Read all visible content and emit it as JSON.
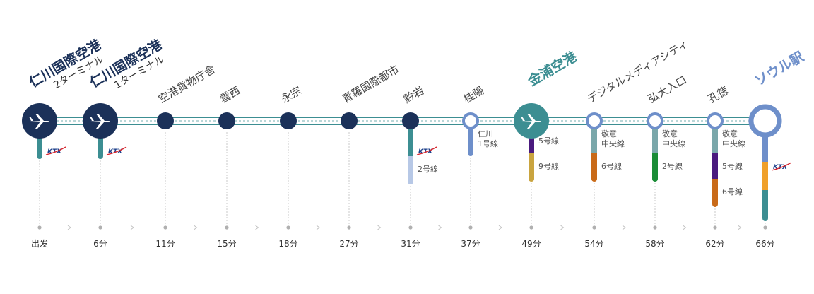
{
  "colors": {
    "dark": "#1b3159",
    "teal": "#3c8e92",
    "blue": "#6e8fca",
    "ktx_blue": "#1b3f8a",
    "ktx_red": "#d7262e"
  },
  "stations": [
    {
      "name": "仁川国際空港",
      "sub": "2ターミナル",
      "time": "出发",
      "type": "airport",
      "style": "dark",
      "connections": [
        {
          "kind": "ktx",
          "label": "KTX",
          "color": "#3c8e92"
        }
      ]
    },
    {
      "name": "仁川国際空港",
      "sub": "1ターミナル",
      "time": "6分",
      "type": "airport",
      "style": "dark",
      "connections": [
        {
          "kind": "ktx",
          "label": "KTX",
          "color": "#3c8e92"
        }
      ]
    },
    {
      "name": "空港貨物庁舎",
      "time": "11分",
      "type": "dark",
      "connections": []
    },
    {
      "name": "雲西",
      "time": "15分",
      "type": "dark",
      "connections": []
    },
    {
      "name": "永宗",
      "time": "18分",
      "type": "dark",
      "connections": []
    },
    {
      "name": "青羅国際都市",
      "time": "27分",
      "type": "dark",
      "connections": []
    },
    {
      "name": "黔岩",
      "time": "31分",
      "type": "dark",
      "connections": [
        {
          "kind": "ktx",
          "label": "KTX",
          "color": "#3c8e92"
        },
        {
          "kind": "line",
          "label": "2号線",
          "color": "#b7c8e6"
        }
      ]
    },
    {
      "name": "桂陽",
      "time": "37分",
      "type": "ring",
      "connections": [
        {
          "kind": "line",
          "label": "仁川\n1号線",
          "color": "#6e8fca"
        }
      ]
    },
    {
      "name": "金浦空港",
      "time": "49分",
      "type": "airport",
      "style": "teal",
      "connections": [
        {
          "kind": "line",
          "label": "5号線",
          "color": "#4a1a7e"
        },
        {
          "kind": "line",
          "label": "9号線",
          "color": "#c9a43f"
        }
      ]
    },
    {
      "name": "デジタルメディアシティ",
      "time": "54分",
      "type": "ring",
      "connections": [
        {
          "kind": "line",
          "label": "敬意\n中央線",
          "color": "#7aa7aa"
        },
        {
          "kind": "line",
          "label": "6号線",
          "color": "#c96a18"
        }
      ]
    },
    {
      "name": "弘大入口",
      "time": "58分",
      "type": "ring",
      "connections": [
        {
          "kind": "line",
          "label": "敬意\n中央線",
          "color": "#7aa7aa"
        },
        {
          "kind": "line",
          "label": "2号線",
          "color": "#1a8c36"
        }
      ]
    },
    {
      "name": "孔徳",
      "time": "62分",
      "type": "ring",
      "connections": [
        {
          "kind": "line",
          "label": "敬意\n中央線",
          "color": "#7aa7aa"
        },
        {
          "kind": "line",
          "label": "5号線",
          "color": "#4a1a7e"
        },
        {
          "kind": "line",
          "label": "6号線",
          "color": "#c96a18"
        }
      ]
    },
    {
      "name": "ソウル駅",
      "time": "66分",
      "type": "terminal",
      "style": "blue",
      "connections": [
        {
          "kind": "line",
          "label": "",
          "color": "#6e8fca"
        },
        {
          "kind": "line",
          "label": "",
          "color": "#f0a02a"
        },
        {
          "kind": "ktx",
          "label": "KTX",
          "color": "#3c8e92"
        }
      ]
    }
  ]
}
